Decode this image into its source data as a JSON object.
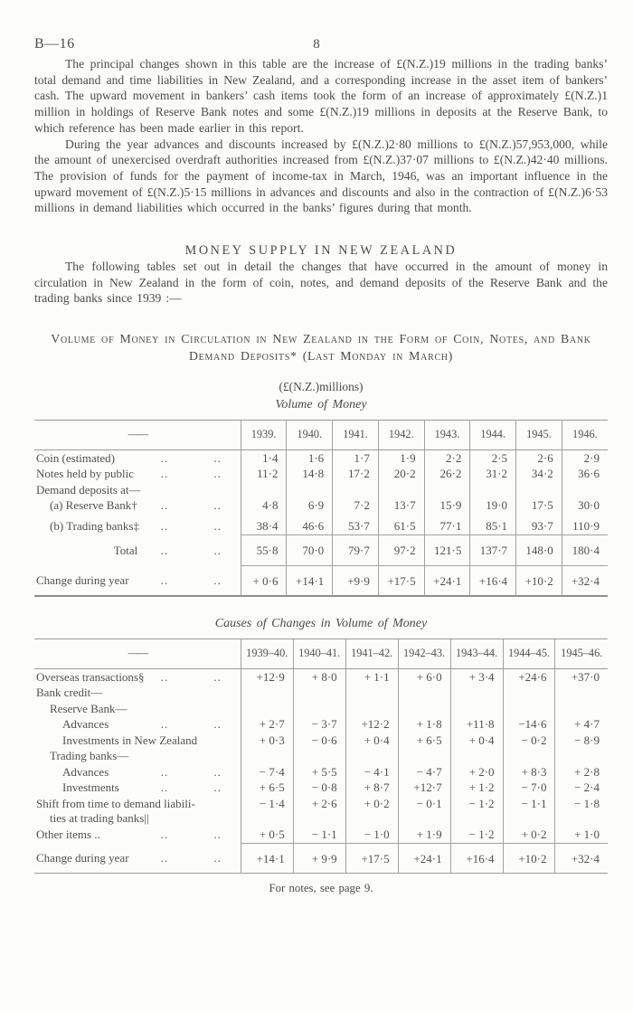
{
  "page": {
    "doc_ref": "B—16",
    "page_number": "8",
    "footer_note": "For notes, see page 9."
  },
  "paragraphs": {
    "p1": "The principal changes shown in this table are the increase of £(N.Z.)19 millions in the trading banks’ total demand and time liabilities in New Zealand, and a corresponding increase in the asset item of bankers’ cash.  The upward movement in bankers’ cash items took the form of an increase of approximately £(N.Z.)1 million in holdings of Reserve Bank notes and some £(N.Z.)19 millions in deposits at the Reserve Bank, to which reference has been made earlier in this report.",
    "p2": "During the year advances and discounts increased by £(N.Z.)2·80 millions to £(N.Z.)57,953,000, while the amount of unexercised overdraft authorities increased from £(N.Z.)37·07 millions to £(N.Z.)42·40 millions.  The provision of funds for the payment of income-tax in March, 1946, was an important influence in the upward movement of £(N.Z.)5·15 millions in advances and discounts and also in the contraction of £(N.Z.)6·53 millions in demand liabilities which occurred in the banks’ figures during that month.",
    "p3": "The following tables set out in detail the changes that have occurred in the amount of money in circulation in New Zealand in the form of coin, notes, and demand deposits of the Reserve Bank and the trading banks since 1939 :—"
  },
  "section_heading": "MONEY SUPPLY IN NEW ZEALAND",
  "table_block": {
    "caption": "Volume of Money in Circulation in New Zealand in the Form of Coin, Notes, and Bank Demand Deposits* (Last Monday in March)",
    "unit_line": "(£(N.Z.)millions)"
  },
  "tables": [
    {
      "title": "Volume of Money",
      "dash_header": "——",
      "columns": [
        "1939.",
        "1940.",
        "1941.",
        "1942.",
        "1943.",
        "1944.",
        "1945.",
        "1946."
      ],
      "rows": [
        {
          "label": "Coin (estimated)",
          "dots": [
            2,
            3
          ],
          "values": [
            "1·4",
            "1·6",
            "1·7",
            "1·9",
            "2·2",
            "2·5",
            "2·6",
            "2·9"
          ]
        },
        {
          "label": "Notes held by public",
          "dots": [
            2,
            3
          ],
          "values": [
            "11·2",
            "14·8",
            "17·2",
            "20·2",
            "26·2",
            "31·2",
            "34·2",
            "36·6"
          ]
        },
        {
          "label": "Demand deposits at—",
          "dots": [],
          "values": null
        },
        {
          "label": "(a) Reserve Bank†",
          "indent": 1,
          "dots": [
            2,
            3
          ],
          "values": [
            "4·8",
            "6·9",
            "7·2",
            "13·7",
            "15·9",
            "19·0",
            "17·5",
            "30·0"
          ],
          "prerule": true
        },
        {
          "label": "(b) Trading banks‡",
          "indent": 1,
          "dots": [
            2,
            3
          ],
          "values": [
            "38·4",
            "46·6",
            "53·7",
            "61·5",
            "77·1",
            "85·1",
            "93·7",
            "110·9"
          ]
        },
        {
          "label": "Total",
          "style": "total",
          "dots": [
            2,
            3
          ],
          "rule": true,
          "values": [
            "55·8",
            "70·0",
            "79·7",
            "97·2",
            "121·5",
            "137·7",
            "148·0",
            "180·4"
          ]
        },
        {
          "label": "Change during year",
          "dots": [
            2,
            3
          ],
          "rule": true,
          "values": [
            "+ 0·6",
            "+14·1",
            "+9·9",
            "+17·5",
            "+24·1",
            "+16·4",
            "+10·2",
            "+32·4"
          ]
        }
      ]
    },
    {
      "title": "Causes of Changes in Volume of Money",
      "dash_header": "——",
      "columns": [
        "1939–40.",
        "1940–41.",
        "1941–42.",
        "1942–43.",
        "1943–44.",
        "1944–45.",
        "1945–46."
      ],
      "rows": [
        {
          "label": "Overseas transactions§",
          "dots": [
            2,
            3
          ],
          "values": [
            "+12·9",
            "+ 8·0",
            "+ 1·1",
            "+ 6·0",
            "+ 3·4",
            "+24·6",
            "+37·0"
          ]
        },
        {
          "label": "Bank credit—",
          "dots": [],
          "values": null
        },
        {
          "label": "Reserve Bank—",
          "indent": 1,
          "dots": [],
          "values": null
        },
        {
          "label": "Advances",
          "indent": 2,
          "dots": [
            2,
            3
          ],
          "values": [
            "+ 2·7",
            "− 3·7",
            "+12·2",
            "+ 1·8",
            "+11·8",
            "−14·6",
            "+ 4·7"
          ]
        },
        {
          "label": "Investments in New Zealand",
          "indent": 2,
          "dots": [],
          "values": [
            "+ 0·3",
            "− 0·6",
            "+ 0·4",
            "+ 6·5",
            "+ 0·4",
            "− 0·2",
            "− 8·9"
          ]
        },
        {
          "label": "Trading banks—",
          "indent": 1,
          "dots": [],
          "values": null
        },
        {
          "label": "Advances",
          "indent": 2,
          "dots": [
            2,
            3
          ],
          "values": [
            "− 7·4",
            "+ 5·5",
            "− 4·1",
            "− 4·7",
            "+ 2·0",
            "+ 8·3",
            "+ 2·8"
          ]
        },
        {
          "label": "Investments",
          "indent": 2,
          "dots": [
            2,
            3
          ],
          "values": [
            "+ 6·5",
            "− 0·8",
            "+ 8·7",
            "+12·7",
            "+ 1·2",
            "− 7·0",
            "− 2·4"
          ]
        },
        {
          "label": "Shift from time to demand liabili-",
          "label2": "ties at trading banks||",
          "dots": [],
          "values": [
            "− 1·4",
            "+ 2·6",
            "+ 0·2",
            "− 0·1",
            "− 1·2",
            "− 1·1",
            "− 1·8"
          ]
        },
        {
          "label": "Other items ..",
          "dots": [
            2,
            3
          ],
          "values": [
            "+ 0·5",
            "− 1·1",
            "− 1·0",
            "+ 1·9",
            "− 1·2",
            "+ 0·2",
            "+ 1·0"
          ]
        },
        {
          "label": "Change during year",
          "dots": [
            2,
            3
          ],
          "rule": true,
          "values": [
            "+14·1",
            "+ 9·9",
            "+17·5",
            "+24·1",
            "+16·4",
            "+10·2",
            "+32·4"
          ]
        }
      ]
    }
  ]
}
